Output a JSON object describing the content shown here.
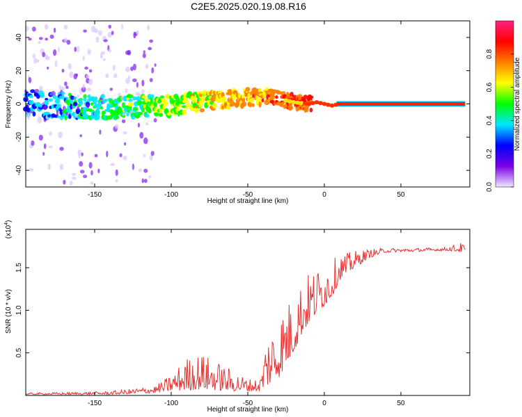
{
  "title": "C2E5.2025.020.19.08.R16",
  "chart_data": [
    {
      "type": "heatmap",
      "xlabel": "Height of straight line (km)",
      "ylabel": "Frequency (Hz)",
      "xlim": [
        -195,
        95
      ],
      "ylim": [
        -50,
        50
      ],
      "x_ticks": [
        -150,
        -100,
        -50,
        0,
        50
      ],
      "y_ticks": [
        -40,
        -20,
        0,
        20,
        40
      ],
      "colorbar": {
        "label": "Normalized spectral amplitude",
        "range": [
          0.0,
          1.0
        ],
        "ticks": [
          "0.0",
          "0.2",
          "0.4",
          "0.6",
          "0.8"
        ],
        "colors": [
          "#f0e8ff",
          "#7a00e6",
          "#0000ff",
          "#00e6ff",
          "#00ff00",
          "#ffff00",
          "#ff8000",
          "#ff0000",
          "#ff2080"
        ]
      },
      "ridge": {
        "x": [
          -195,
          -150,
          -100,
          -75,
          -50,
          -35,
          -20,
          -10,
          -5,
          0,
          5,
          10,
          92
        ],
        "frequency": [
          0,
          -2,
          -1,
          2,
          4,
          4,
          1,
          0,
          1,
          0,
          -1,
          0,
          0
        ]
      }
    },
    {
      "type": "line",
      "xlabel": "Height of straight line (km)",
      "ylabel": "SNR (10 * v/v)",
      "y_multiplier": "(x10",
      "y_multiplier_exp": "4",
      "xlim": [
        -195,
        95
      ],
      "ylim": [
        0,
        1.95
      ],
      "x_ticks": [
        -150,
        -100,
        -50,
        0,
        50
      ],
      "y_ticks": [
        "0.5",
        "1.0",
        "1.5"
      ],
      "color": "#e83030",
      "envelope": {
        "x": [
          -195,
          -160,
          -140,
          -125,
          -110,
          -100,
          -90,
          -80,
          -70,
          -60,
          -50,
          -42,
          -38,
          -30,
          -20,
          -15,
          -10,
          -5,
          0,
          5,
          10,
          20,
          30,
          40,
          60,
          80,
          90,
          92
        ],
        "low": [
          0.01,
          0.01,
          0.01,
          0.02,
          0.03,
          0.05,
          0.06,
          0.07,
          0.06,
          0.05,
          0.05,
          0.05,
          0.1,
          0.2,
          0.5,
          0.7,
          0.85,
          0.95,
          1.05,
          1.15,
          1.35,
          1.5,
          1.62,
          1.68,
          1.69,
          1.7,
          1.68,
          1.68
        ],
        "high": [
          0.03,
          0.04,
          0.05,
          0.08,
          0.12,
          0.25,
          0.45,
          0.5,
          0.4,
          0.3,
          0.2,
          0.2,
          0.7,
          0.95,
          1.2,
          1.35,
          1.45,
          1.5,
          1.55,
          1.6,
          1.65,
          1.7,
          1.72,
          1.73,
          1.73,
          1.74,
          1.8,
          1.75
        ]
      }
    }
  ]
}
